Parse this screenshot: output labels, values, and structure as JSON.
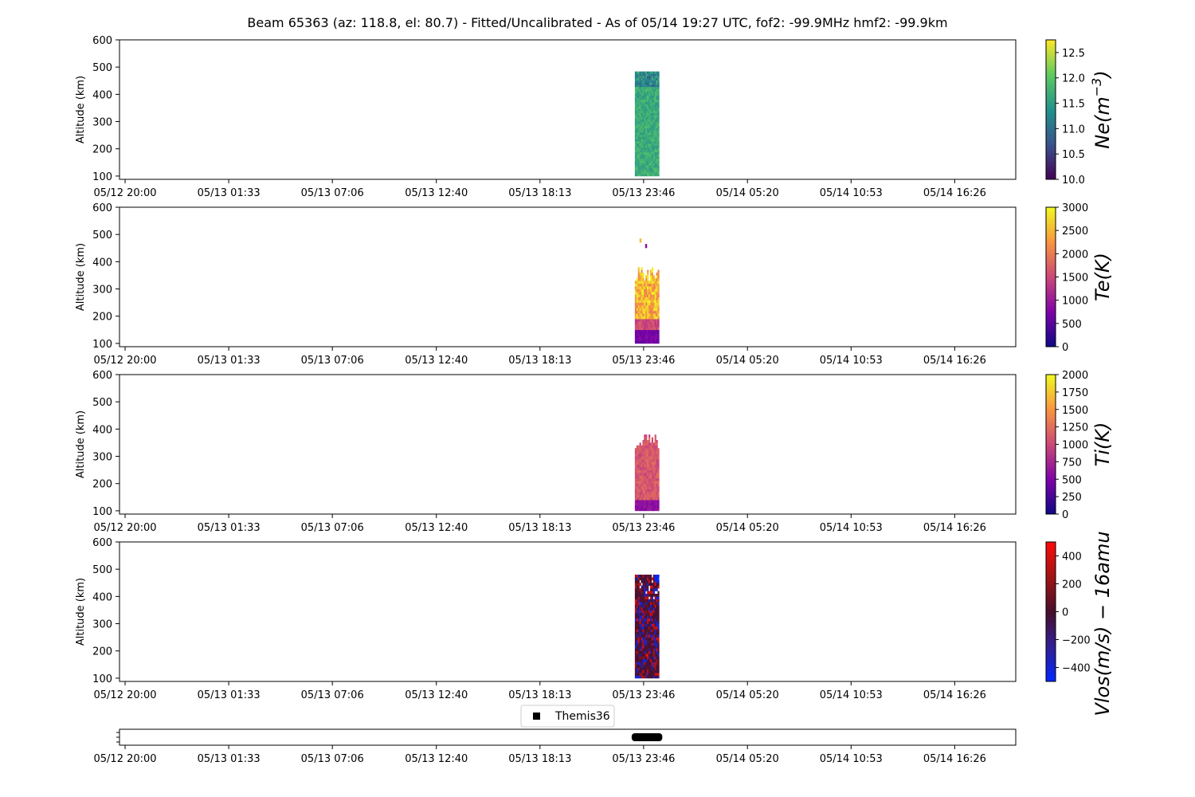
{
  "title": "Beam 65363 (az: 118.8, el: 80.7) - Fitted/Uncalibrated - As of 05/14 19:27 UTC, fof2: -99.9MHz  hmf2: -99.9km",
  "x_axis": {
    "tick_labels": [
      "05/12 20:00",
      "05/13 01:33",
      "05/13 07:06",
      "05/13 12:40",
      "05/13 18:13",
      "05/13 23:46",
      "05/14 05:20",
      "05/14 10:53",
      "05/14 16:26"
    ],
    "tick_hours": [
      0,
      5.55,
      11.1,
      16.67,
      22.22,
      27.77,
      33.33,
      38.88,
      44.43
    ],
    "range_hours": [
      -0.3,
      47.7
    ],
    "origin": "05/12 20:00"
  },
  "chart_data": [
    {
      "type": "heatmap",
      "ylabel": "Altitude (km)",
      "ylim": [
        88,
        600
      ],
      "yticks": [
        100,
        200,
        300,
        400,
        500,
        600
      ],
      "colorbar": {
        "label": "Ne(m^-3)",
        "label_main": "Ne(m",
        "label_sup": "−3",
        "label_tail": ")",
        "range": [
          10.0,
          12.75
        ],
        "ticks": [
          10.0,
          10.5,
          11.0,
          11.5,
          12.0,
          12.5
        ],
        "tick_labels": [
          "10.0",
          "10.5",
          "11.0",
          "11.5",
          "12.0",
          "12.5"
        ],
        "colormap": "viridis"
      },
      "data_block": {
        "x_hours": [
          27.3,
          28.6
        ],
        "alt_km": [
          100,
          480
        ],
        "dominant_value": 11.7,
        "value_range": [
          10.9,
          12.1
        ]
      }
    },
    {
      "type": "heatmap",
      "ylabel": "Altitude (km)",
      "ylim": [
        88,
        600
      ],
      "yticks": [
        100,
        200,
        300,
        400,
        500,
        600
      ],
      "colorbar": {
        "label": "Te(K)",
        "range": [
          0,
          3000
        ],
        "ticks": [
          0,
          500,
          1000,
          1500,
          2000,
          2500,
          3000
        ],
        "tick_labels": [
          "0",
          "500",
          "1000",
          "1500",
          "2000",
          "2500",
          "3000"
        ],
        "colormap": "plasma"
      },
      "data_block": {
        "x_hours": [
          27.3,
          28.6
        ],
        "alt_km": [
          100,
          380
        ],
        "low_layer_value": 700,
        "upper_value_range": [
          2000,
          3000
        ],
        "outliers": [
          {
            "x_hour": 27.55,
            "alt_km": 470,
            "value": 2500
          },
          {
            "x_hour": 27.85,
            "alt_km": 450,
            "value": 900
          }
        ]
      }
    },
    {
      "type": "heatmap",
      "ylabel": "Altitude (km)",
      "ylim": [
        88,
        600
      ],
      "yticks": [
        100,
        200,
        300,
        400,
        500,
        600
      ],
      "colorbar": {
        "label": "Ti(K)",
        "range": [
          0,
          2000
        ],
        "ticks": [
          0,
          250,
          500,
          750,
          1000,
          1250,
          1500,
          1750,
          2000
        ],
        "tick_labels": [
          "0",
          "250",
          "500",
          "750",
          "1000",
          "1250",
          "1500",
          "1750",
          "2000"
        ],
        "colormap": "plasma"
      },
      "data_block": {
        "x_hours": [
          27.3,
          28.6
        ],
        "alt_km": [
          100,
          380
        ],
        "dominant_value": 1100,
        "low_layer_value": 600
      }
    },
    {
      "type": "heatmap",
      "ylabel": "Altitude (km)",
      "ylim": [
        88,
        600
      ],
      "yticks": [
        100,
        200,
        300,
        400,
        500,
        600
      ],
      "colorbar": {
        "label": "Vlos(m/s) - 16amu",
        "label_text": "Vlos(m/s) − 16amu",
        "range": [
          -500,
          500
        ],
        "ticks": [
          -400,
          -200,
          0,
          200,
          400
        ],
        "tick_labels": [
          "−400",
          "−200",
          "0",
          "200",
          "400"
        ],
        "colormap": "bwr-dark"
      },
      "data_block": {
        "x_hours": [
          27.3,
          28.6
        ],
        "alt_km": [
          100,
          480
        ],
        "value_range": [
          -450,
          450
        ]
      }
    }
  ],
  "legend": {
    "label": "Themis36",
    "marker": "square"
  },
  "status_strip": {
    "x_hours": [
      27.3,
      28.6
    ],
    "label": "Themis36"
  }
}
